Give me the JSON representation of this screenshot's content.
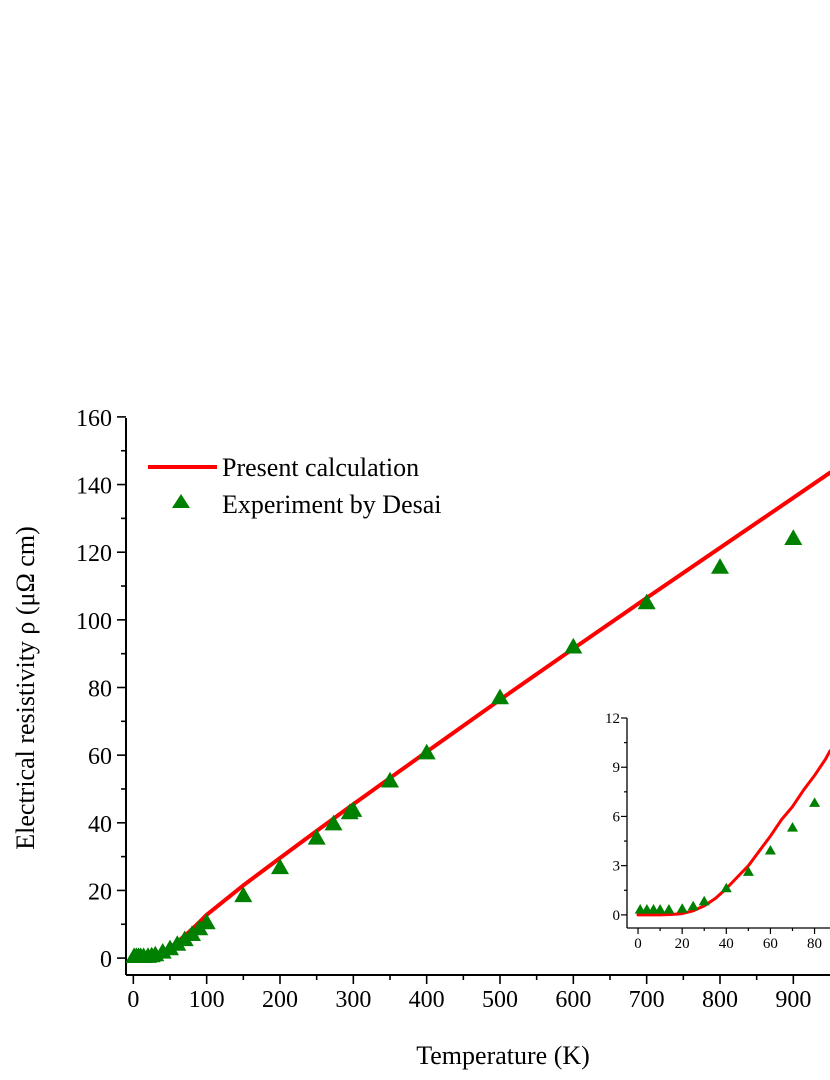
{
  "chart_data": [
    {
      "type": "line",
      "title": "",
      "xlabel": "Temperature (K)",
      "ylabel": "Electrical resistivity ρ (μΩ cm)",
      "xlim": [
        -10,
        950
      ],
      "ylim": [
        -5,
        165
      ],
      "x_ticks": [
        0,
        100,
        200,
        300,
        400,
        500,
        600,
        700,
        800,
        900
      ],
      "y_ticks": [
        0,
        20,
        40,
        60,
        80,
        100,
        120,
        140,
        160
      ],
      "legend": {
        "placement": "top-left",
        "frame": false
      },
      "grid": false,
      "series": [
        {
          "name": "Present calculation",
          "kind": "line",
          "color": "#ff0000",
          "x": [
            0,
            10,
            20,
            25,
            30,
            40,
            50,
            60,
            70,
            80,
            90,
            100,
            150,
            200,
            250,
            300,
            400,
            500,
            600,
            700,
            800,
            900,
            950
          ],
          "y": [
            0,
            0,
            0.1,
            0.3,
            0.6,
            1.5,
            3.0,
            4.8,
            6.6,
            8.5,
            10.6,
            12.8,
            21.5,
            29.6,
            37.6,
            45.5,
            61.0,
            76.4,
            91.5,
            106.5,
            121.3,
            136.1,
            143.5
          ]
        },
        {
          "name": "Experiment by Desai",
          "kind": "scatter",
          "marker": "triangle",
          "color": "#008000",
          "x": [
            1,
            4,
            7,
            10,
            14,
            20,
            25,
            30,
            40,
            50,
            60,
            70,
            80,
            90,
            100,
            150,
            200,
            250,
            273,
            295,
            300,
            350,
            400,
            500,
            600,
            700,
            800,
            900
          ],
          "y": [
            0.3,
            0.3,
            0.3,
            0.3,
            0.3,
            0.35,
            0.5,
            0.8,
            1.6,
            2.6,
            3.9,
            5.3,
            6.8,
            8.5,
            10.3,
            18.3,
            26.6,
            35.3,
            39.5,
            42.8,
            43.5,
            52.2,
            60.5,
            76.8,
            91.8,
            104.9,
            115.4,
            123.9
          ]
        }
      ]
    },
    {
      "type": "line",
      "title": "",
      "xlabel": "",
      "ylabel": "",
      "xlim": [
        -5,
        87
      ],
      "ylim": [
        -0.8,
        12
      ],
      "x_ticks": [
        0,
        20,
        40,
        60,
        80
      ],
      "y_ticks": [
        0,
        3,
        6,
        9,
        12
      ],
      "placement": "inset-bottom-right",
      "grid": false,
      "series": [
        {
          "name": "",
          "kind": "line",
          "color": "#ff0000",
          "x": [
            0,
            10,
            15,
            20,
            25,
            30,
            35,
            40,
            45,
            50,
            55,
            60,
            65,
            70,
            75,
            80,
            85,
            87
          ],
          "y": [
            0,
            0,
            0.02,
            0.08,
            0.25,
            0.55,
            1.0,
            1.6,
            2.3,
            3.0,
            3.9,
            4.8,
            5.8,
            6.6,
            7.6,
            8.5,
            9.5,
            10.0
          ]
        },
        {
          "name": "",
          "kind": "scatter",
          "marker": "triangle",
          "color": "#008000",
          "x": [
            1,
            4,
            7,
            10,
            14,
            20,
            25,
            30,
            40,
            50,
            60,
            70,
            80
          ],
          "y": [
            0.3,
            0.3,
            0.3,
            0.3,
            0.3,
            0.35,
            0.5,
            0.8,
            1.6,
            2.6,
            3.9,
            5.3,
            6.8
          ]
        }
      ]
    }
  ]
}
